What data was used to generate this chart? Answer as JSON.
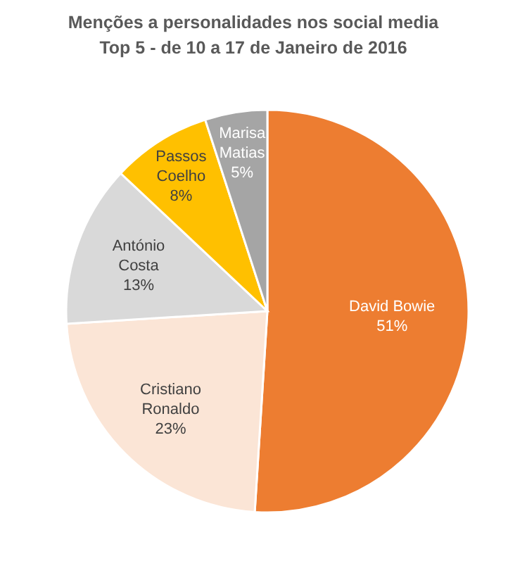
{
  "chart_data": {
    "type": "pie",
    "title": "Menções a personalidades nos social media",
    "subtitle": "Top 5 - de 10 a 17 de Janeiro de 2016",
    "categories": [
      "David Bowie",
      "Cristiano Ronaldo",
      "António Costa",
      "Passos Coelho",
      "Marisa Matias"
    ],
    "values": [
      51,
      23,
      13,
      8,
      5
    ],
    "colors": [
      "#ed7d31",
      "#fbe5d6",
      "#d9d9d9",
      "#ffc000",
      "#a5a5a5"
    ],
    "value_labels": [
      "51%",
      "23%",
      "13%",
      "8%",
      "5%"
    ]
  }
}
